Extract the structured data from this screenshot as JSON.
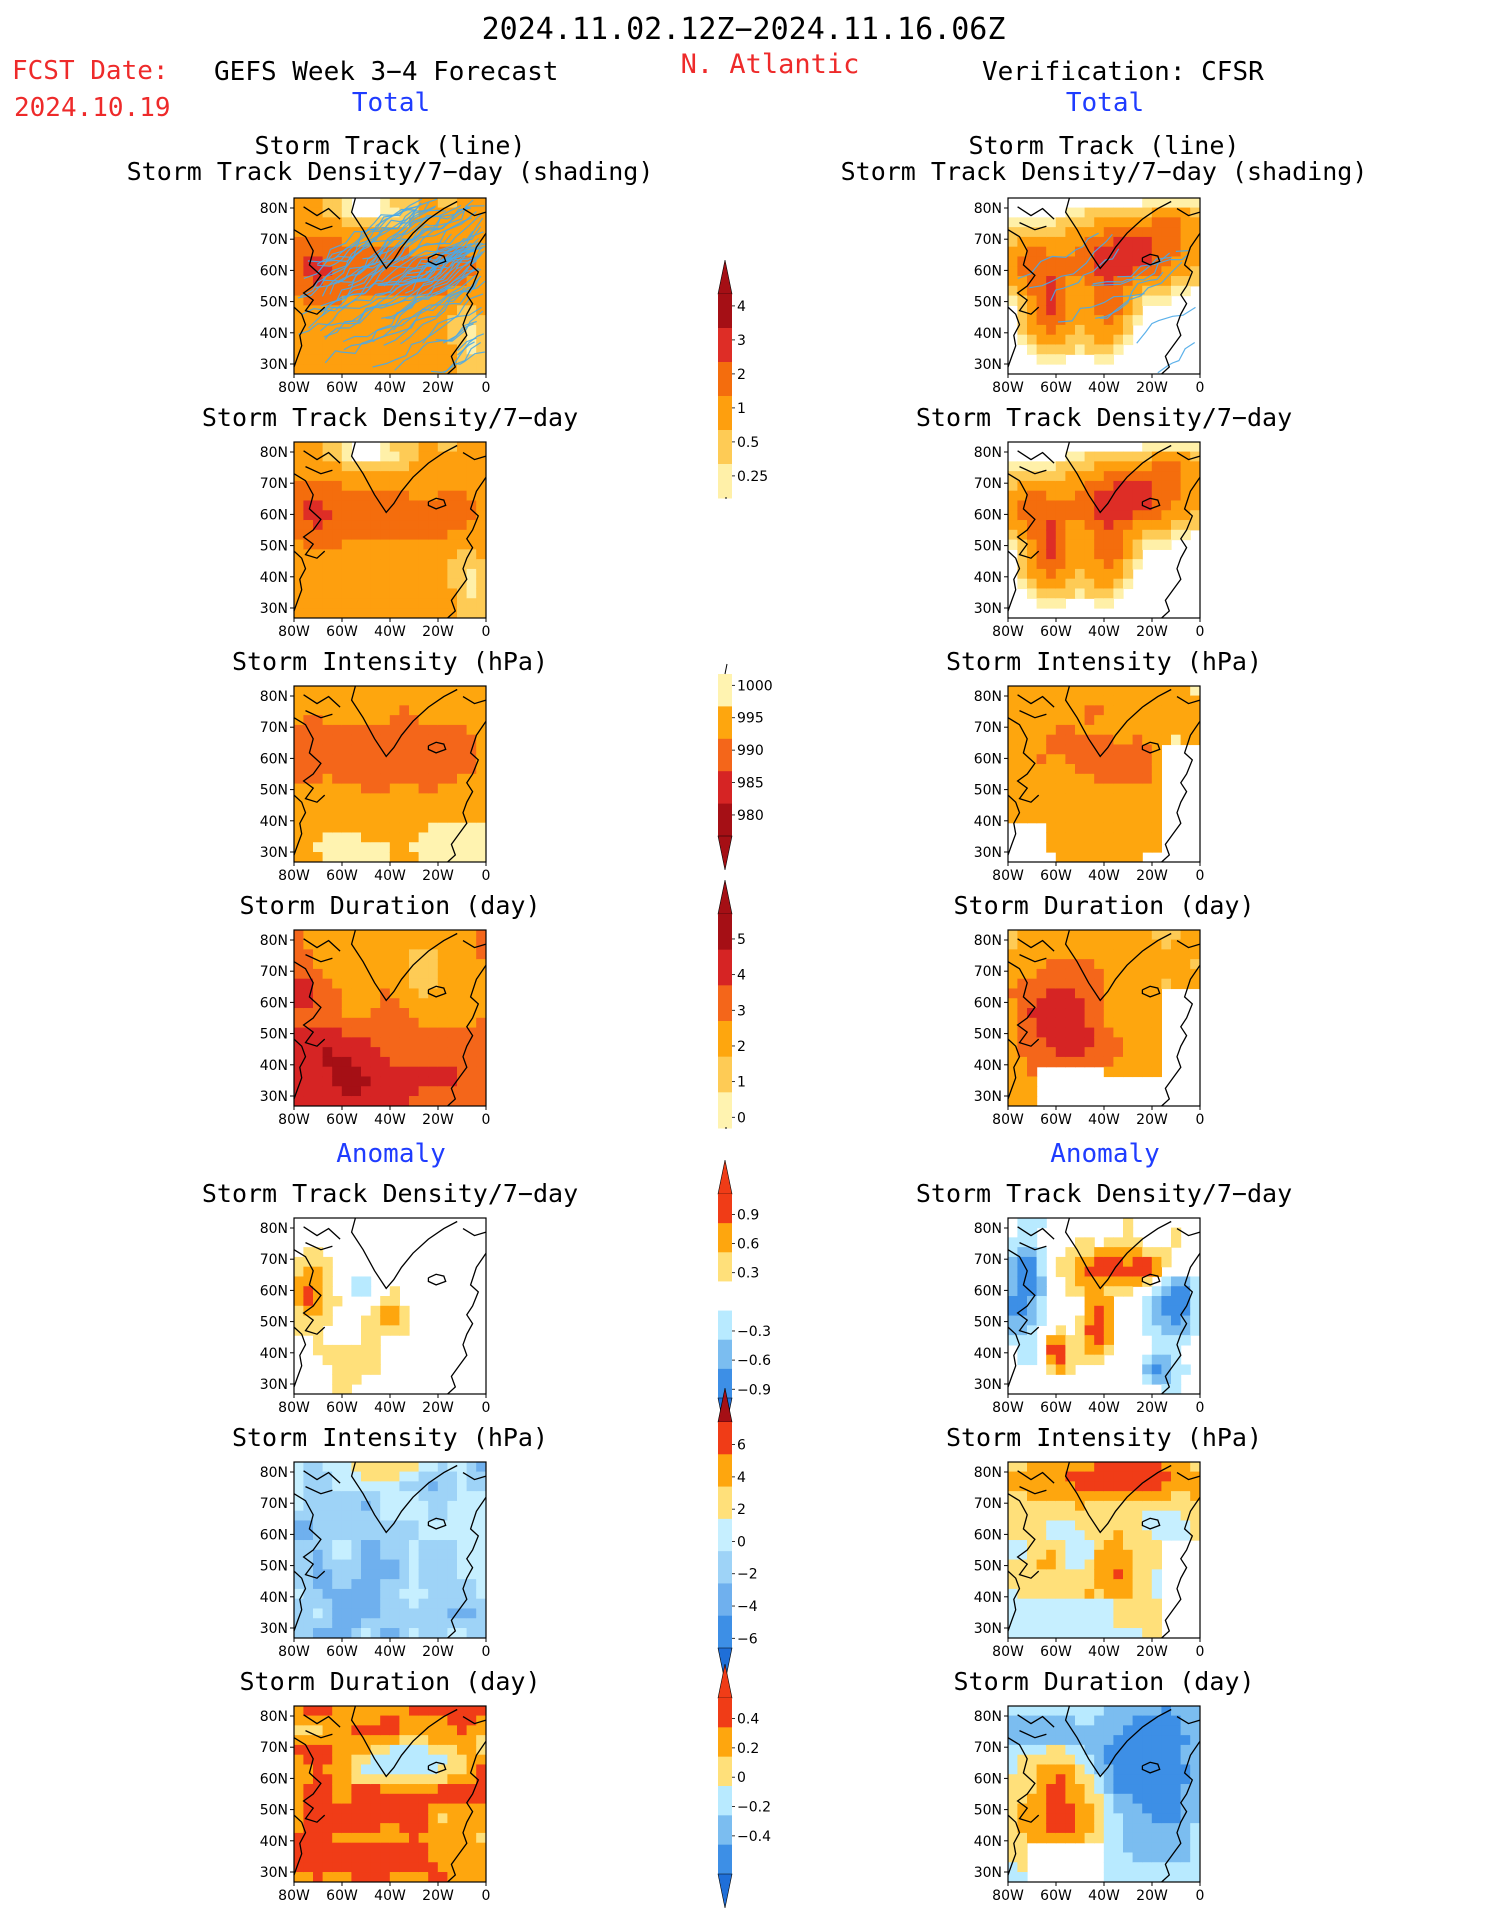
{
  "header": {
    "date_range": "2024.11.02.12Z−2024.11.16.06Z",
    "region": "N. Atlantic",
    "fcst_label": "FCST Date:",
    "fcst_date": "2024.10.19",
    "left_title": "GEFS Week 3−4 Forecast",
    "right_title": "Verification: CFSR",
    "section_total": "Total",
    "section_anomaly": "Anomaly"
  },
  "panel_titles": {
    "track_line": "Storm Track (line)",
    "track_shading": "Storm Track Density/7−day (shading)",
    "density": "Storm Track Density/7−day",
    "intensity": "Storm Intensity (hPa)",
    "duration": "Storm Duration (day)"
  },
  "axes": {
    "lat_labels": [
      "80N",
      "70N",
      "60N",
      "50N",
      "40N",
      "30N"
    ],
    "lon_labels": [
      "80W",
      "60W",
      "40W",
      "20W",
      "0"
    ]
  },
  "colorbars": {
    "density": {
      "labels": [
        "4",
        "3",
        "2",
        "1",
        "0.5",
        "0.25"
      ],
      "colors": [
        "#a50f15",
        "#de2d26",
        "#f46d0d",
        "#fe9f0e",
        "#fecb55",
        "#fff0a8"
      ],
      "top_arrow": "#a50f15"
    },
    "intensity": {
      "labels": [
        "1000",
        "995",
        "990",
        "985",
        "980"
      ],
      "colors": [
        "#fff3b0",
        "#fea60e",
        "#f4661a",
        "#d62424",
        "#a50f15"
      ],
      "bottom_arrow": "#a50f15"
    },
    "duration": {
      "labels": [
        "5",
        "4",
        "3",
        "2",
        "1",
        "0"
      ],
      "colors": [
        "#a50f15",
        "#d62424",
        "#f4661a",
        "#fea60e",
        "#fecb55",
        "#fff3b0"
      ],
      "top_arrow": "#a50f15"
    },
    "density_anom": {
      "labels": [
        "0.9",
        "0.6",
        "0.3",
        "−0.3",
        "−0.6",
        "−0.9"
      ],
      "colors": [
        "#f03c17",
        "#fea60e",
        "#ffe07a",
        "#ffffff",
        "#b8eaff",
        "#7bbdf0",
        "#3d8fe6"
      ],
      "top_arrow": "#f03c17",
      "bottom_arrow": "#1f6fd8"
    },
    "intensity_anom": {
      "labels": [
        "6",
        "4",
        "2",
        "0",
        "−2",
        "−4",
        "−6"
      ],
      "colors": [
        "#f03c17",
        "#fea60e",
        "#ffe07a",
        "#c6efff",
        "#9ed3f7",
        "#6fb0ee",
        "#3d8fe6"
      ],
      "top_arrow": "#a50f15",
      "bottom_arrow": "#1f6fd8"
    },
    "duration_anom": {
      "labels": [
        "0.4",
        "0.2",
        "0",
        "−0.2",
        "−0.4"
      ],
      "colors": [
        "#f03c17",
        "#fea60e",
        "#ffe07a",
        "#b8eaff",
        "#7bbdf0",
        "#3d8fe6"
      ],
      "top_arrow": "#f03c17",
      "bottom_arrow": "#1f6fd8"
    }
  },
  "panels": [
    {
      "id": "fc-track",
      "title": "track_line",
      "title2": "track_shading",
      "palette": "density",
      "base": 2,
      "shade": "fc_density",
      "tracks": "many"
    },
    {
      "id": "vf-track",
      "title": "track_line",
      "title2": "track_shading",
      "palette": "density",
      "base": 3,
      "shade": "vf_density",
      "tracks": "few"
    },
    {
      "id": "fc-density",
      "title": "density",
      "palette": "density",
      "shade": "fc_density"
    },
    {
      "id": "vf-density",
      "title": "density",
      "palette": "density",
      "shade": "vf_density"
    },
    {
      "id": "fc-intensity",
      "title": "intensity",
      "palette": "intensity",
      "shade": "fc_intensity"
    },
    {
      "id": "vf-intensity",
      "title": "intensity",
      "palette": "intensity",
      "shade": "vf_intensity"
    },
    {
      "id": "fc-duration",
      "title": "duration",
      "palette": "duration",
      "shade": "fc_duration"
    },
    {
      "id": "vf-duration",
      "title": "duration",
      "palette": "duration",
      "shade": "vf_duration"
    },
    {
      "id": "fc-density-anom",
      "title": "density",
      "palette": "density_anom",
      "shade": "fc_density_anom"
    },
    {
      "id": "vf-density-anom",
      "title": "density",
      "palette": "density_anom",
      "shade": "vf_density_anom"
    },
    {
      "id": "fc-intensity-anom",
      "title": "intensity",
      "palette": "intensity_anom",
      "shade": "fc_intensity_anom"
    },
    {
      "id": "vf-intensity-anom",
      "title": "intensity",
      "palette": "intensity_anom",
      "shade": "vf_intensity_anom"
    },
    {
      "id": "fc-duration-anom",
      "title": "duration",
      "palette": "duration_anom",
      "shade": "fc_duration_anom"
    },
    {
      "id": "vf-duration-anom",
      "title": "duration",
      "palette": "duration_anom",
      "shade": "vf_duration_anom"
    }
  ]
}
